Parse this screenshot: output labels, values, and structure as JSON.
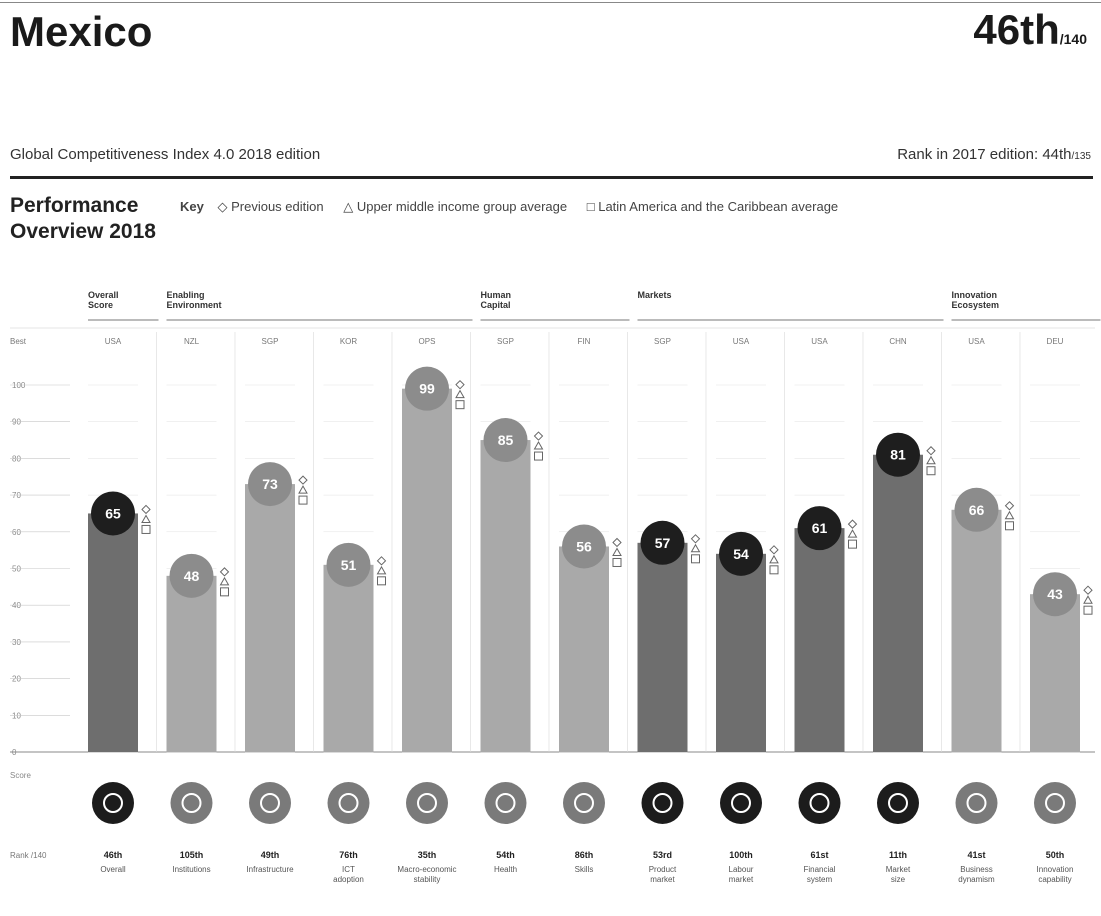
{
  "header": {
    "country": "Mexico",
    "rank": "46th",
    "rank_of": "/140",
    "subtitle": "Global Competitiveness Index 4.0 2018 edition",
    "prev_rank_label": "Rank in 2017 edition: ",
    "prev_rank": "44th",
    "prev_rank_of": "/135"
  },
  "overview": {
    "title_line1": "Performance",
    "title_line2": "Overview 2018"
  },
  "key": {
    "label": "Key",
    "previous": "◇ Previous edition",
    "upper_middle": "△ Upper middle income group average",
    "latam": "□ Latin America and the Caribbean average"
  },
  "chart_data": {
    "type": "bar",
    "ylim": [
      0,
      100
    ],
    "yticks": [
      0,
      10,
      20,
      30,
      40,
      50,
      60,
      70,
      80,
      90,
      100
    ],
    "ylabel": "Score",
    "best_label": "Best",
    "rank_label": "Rank /140",
    "groups": [
      {
        "label": "Overall Score",
        "start": 0,
        "end": 0
      },
      {
        "label": "Enabling Environment",
        "start": 1,
        "end": 4
      },
      {
        "label": "Human Capital",
        "start": 5,
        "end": 6
      },
      {
        "label": "Markets",
        "start": 7,
        "end": 10
      },
      {
        "label": "Innovation Ecosystem",
        "start": 11,
        "end": 12
      }
    ],
    "pillars": [
      {
        "name": "Overall",
        "score": 65,
        "rank": "46th",
        "best": "USA",
        "dark": true
      },
      {
        "name": "Institutions",
        "score": 48,
        "rank": "105th",
        "best": "NZL",
        "dark": false
      },
      {
        "name": "Infrastructure",
        "score": 73,
        "rank": "49th",
        "best": "SGP",
        "dark": false
      },
      {
        "name": "ICT adoption",
        "score": 51,
        "rank": "76th",
        "best": "KOR",
        "dark": false
      },
      {
        "name": "Macro-economic stability",
        "score": 99,
        "rank": "35th",
        "best": "OPS",
        "dark": false
      },
      {
        "name": "Health",
        "score": 85,
        "rank": "54th",
        "best": "SGP",
        "dark": false
      },
      {
        "name": "Skills",
        "score": 56,
        "rank": "86th",
        "best": "FIN",
        "dark": false
      },
      {
        "name": "Product market",
        "score": 57,
        "rank": "53rd",
        "best": "SGP",
        "dark": true
      },
      {
        "name": "Labour market",
        "score": 54,
        "rank": "100th",
        "best": "USA",
        "dark": true
      },
      {
        "name": "Financial system",
        "score": 61,
        "rank": "61st",
        "best": "USA",
        "dark": true
      },
      {
        "name": "Market size",
        "score": 81,
        "rank": "11th",
        "best": "CHN",
        "dark": true
      },
      {
        "name": "Business dynamism",
        "score": 66,
        "rank": "41st",
        "best": "USA",
        "dark": false
      },
      {
        "name": "Innovation capability",
        "score": 43,
        "rank": "50th",
        "best": "DEU",
        "dark": false
      }
    ],
    "colors": {
      "bar_dark": "#6e6e6e",
      "bar_light": "#a9a9a9",
      "circle_dark": "#1e1e1e",
      "circle_light": "#8c8c8c",
      "grid": "#c8c8c8"
    }
  }
}
